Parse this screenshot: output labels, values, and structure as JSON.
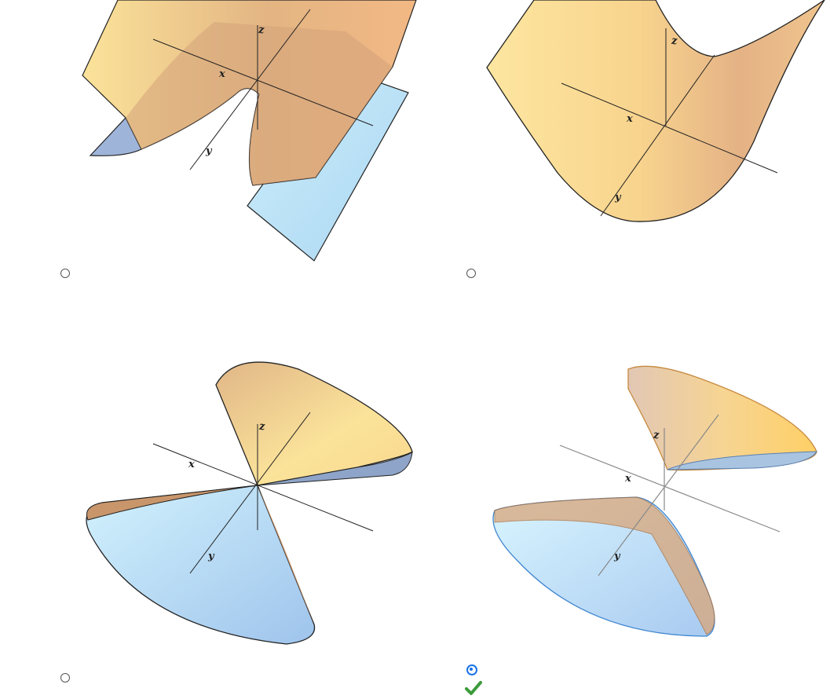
{
  "axes": {
    "x": "x",
    "y": "y",
    "z": "z"
  },
  "options": [
    {
      "id": "a",
      "shape": "hyperbolic-paraboloid",
      "selected": false
    },
    {
      "id": "b",
      "shape": "parabolic-cylinder",
      "selected": false
    },
    {
      "id": "c",
      "shape": "cone",
      "selected": false
    },
    {
      "id": "d",
      "shape": "hyperboloid-of-two-sheets",
      "selected": true,
      "correct": true
    }
  ],
  "colors": {
    "surface_warm": "#f6cf86",
    "surface_dark": "#c49062",
    "surface_blue": "#bfe2f5",
    "selected": "#1a73e8",
    "correct": "#3a9b3a"
  }
}
